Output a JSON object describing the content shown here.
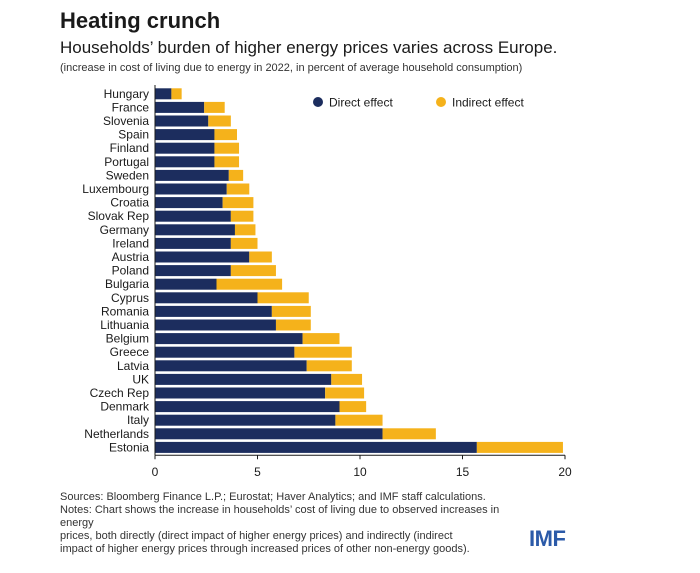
{
  "header": {
    "title": "Heating crunch",
    "subtitle": "Households’ burden of higher energy prices varies across Europe.",
    "note": "(increase in cost of living due to energy in 2022, in percent of average household consumption)"
  },
  "chart_data": {
    "type": "bar",
    "orientation": "horizontal",
    "stacked": true,
    "categories": [
      "Hungary",
      "France",
      "Slovenia",
      "Spain",
      "Finland",
      "Portugal",
      "Sweden",
      "Luxembourg",
      "Croatia",
      "Slovak Rep",
      "Germany",
      "Ireland",
      "Austria",
      "Poland",
      "Bulgaria",
      "Cyprus",
      "Romania",
      "Lithuania",
      "Belgium",
      "Greece",
      "Latvia",
      "UK",
      "Czech Rep",
      "Denmark",
      "Italy",
      "Netherlands",
      "Estonia"
    ],
    "series": [
      {
        "name": "Direct effect",
        "color": "#1c2d5e",
        "values": [
          0.8,
          2.4,
          2.6,
          2.9,
          2.9,
          2.9,
          3.6,
          3.5,
          3.3,
          3.7,
          3.9,
          3.7,
          4.6,
          3.7,
          3.0,
          5.0,
          5.7,
          5.9,
          7.2,
          6.8,
          7.4,
          8.6,
          8.3,
          9.0,
          8.8,
          11.1,
          15.7
        ]
      },
      {
        "name": "Indirect effect",
        "color": "#f5b21b",
        "values": [
          0.5,
          1.0,
          1.1,
          1.1,
          1.2,
          1.2,
          0.7,
          1.1,
          1.5,
          1.1,
          1.0,
          1.3,
          1.1,
          2.2,
          3.2,
          2.5,
          1.9,
          1.7,
          1.8,
          2.8,
          2.2,
          1.5,
          1.9,
          1.3,
          2.3,
          2.6,
          4.2
        ]
      }
    ],
    "xlim": [
      0,
      20
    ],
    "xticks": [
      0,
      5,
      10,
      15,
      20
    ],
    "legend_position": "top-right"
  },
  "footer": {
    "sources": "Sources: Bloomberg Finance L.P.; Eurostat; Haver Analytics; and IMF staff calculations.",
    "notes_lines": [
      "Notes: Chart shows the increase in households’ cost of living due to observed increases in energy",
      "prices, both directly (direct impact of higher energy prices) and indirectly (indirect",
      "impact of higher energy prices through increased prices of other non-energy goods)."
    ]
  },
  "logo": "IMF"
}
